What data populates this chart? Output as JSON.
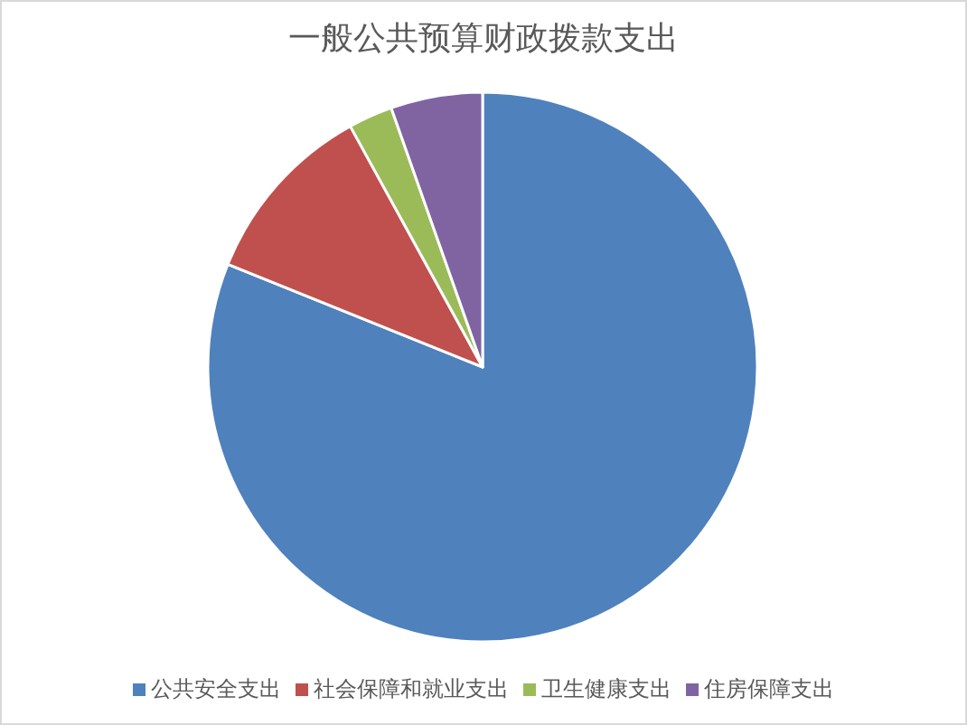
{
  "chart_data": {
    "type": "pie",
    "title": "一般公共预算财政拨款支出",
    "categories": [
      "公共安全支出",
      "社会保障和就业支出",
      "卫生健康支出",
      "住房保障支出"
    ],
    "values": [
      81.1,
      10.9,
      2.6,
      5.4
    ],
    "colors": [
      "#4f81bd",
      "#c0504d",
      "#9bbb59",
      "#8064a2"
    ],
    "legend": "bottom"
  }
}
